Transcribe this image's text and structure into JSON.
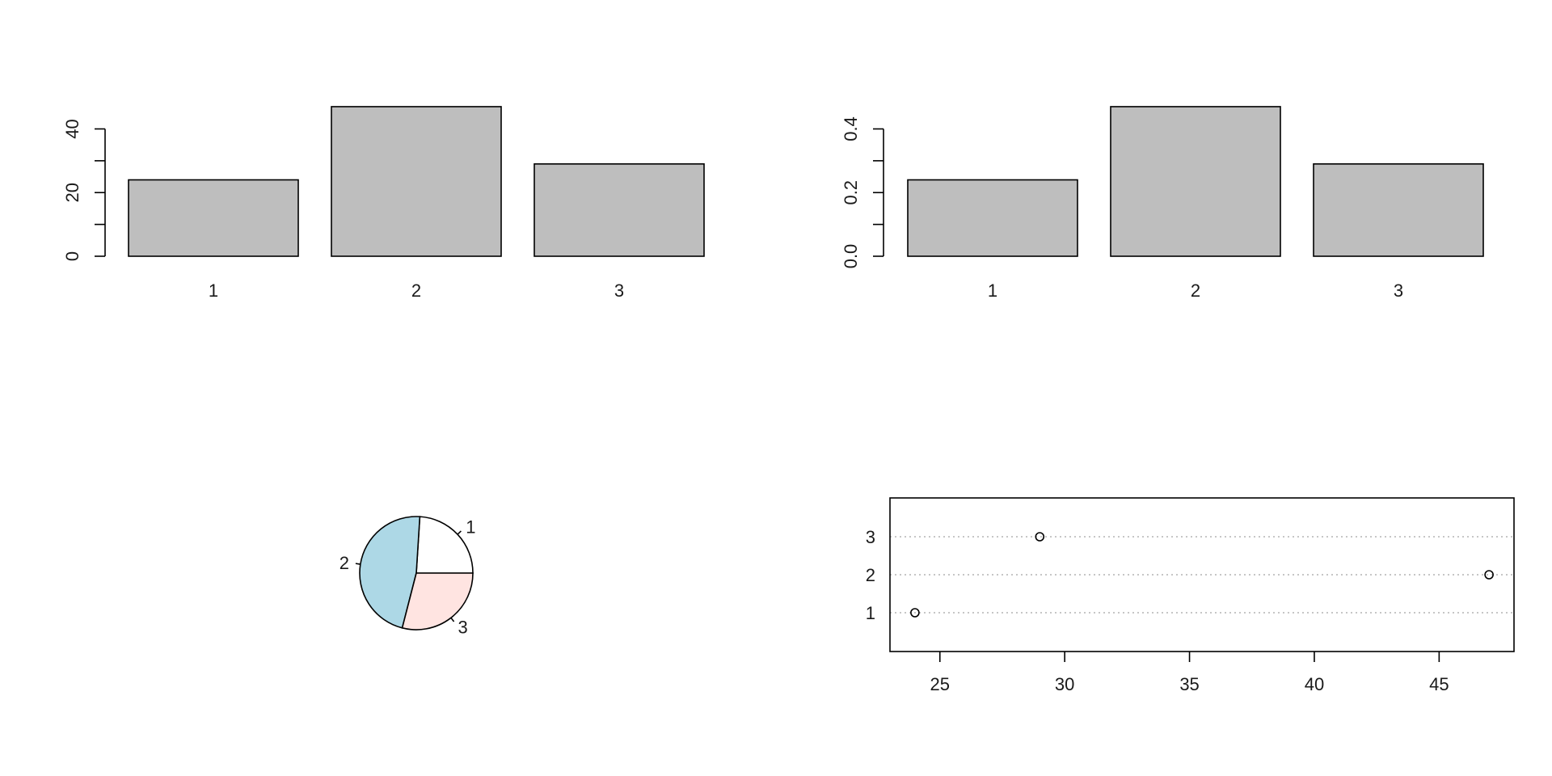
{
  "chart_data": [
    {
      "type": "bar",
      "categories": [
        "1",
        "2",
        "3"
      ],
      "values": [
        24,
        47,
        29
      ],
      "ylim": [
        0,
        48
      ],
      "yticks": [
        0,
        20,
        40
      ],
      "yticklabels": [
        "0",
        "20",
        "40"
      ],
      "bar_color": "#bebebe"
    },
    {
      "type": "bar",
      "categories": [
        "1",
        "2",
        "3"
      ],
      "values": [
        0.24,
        0.47,
        0.29
      ],
      "ylim": [
        0,
        0.48
      ],
      "yticks": [
        0,
        0.2,
        0.4
      ],
      "yticklabels": [
        "0.0",
        "0.2",
        "0.4"
      ],
      "bar_color": "#bebebe"
    },
    {
      "type": "pie",
      "labels": [
        "1",
        "2",
        "3"
      ],
      "values": [
        24,
        47,
        29
      ],
      "colors": [
        "#ffffff",
        "#add8e6",
        "#ffe4e1"
      ]
    },
    {
      "type": "scatter",
      "categories": [
        "1",
        "2",
        "3"
      ],
      "values": [
        24,
        47,
        29
      ],
      "xlim": [
        23,
        48
      ],
      "xticks": [
        25,
        30,
        35,
        40,
        45
      ],
      "xticklabels": [
        "25",
        "30",
        "35",
        "40",
        "45"
      ]
    }
  ]
}
